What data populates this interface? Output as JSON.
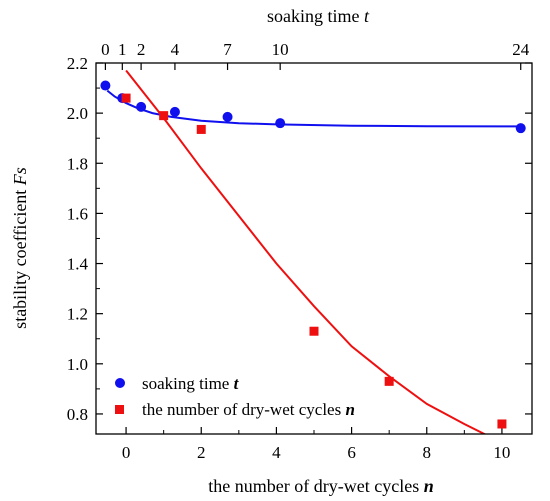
{
  "chart_data": {
    "type": "scatter",
    "title": "",
    "xlabel": {
      "text": "the number of dry-wet cycles ",
      "var": "n"
    },
    "x2label": {
      "text": "soaking time ",
      "var": "t"
    },
    "ylabel": {
      "text": "stability coefficient ",
      "var": "Fs"
    },
    "xlim": [
      -0.8,
      10.8
    ],
    "ylim": [
      0.72,
      2.2
    ],
    "x_ticks": [
      0,
      2,
      4,
      6,
      8,
      10
    ],
    "y_ticks": [
      0.8,
      1.0,
      1.2,
      1.4,
      1.6,
      1.8,
      2.0,
      2.2
    ],
    "y_tick_labels": [
      "0.8",
      "1.0",
      "1.2",
      "1.4",
      "1.6",
      "1.8",
      "2.0",
      "2.2"
    ],
    "top_ticks": [
      {
        "label": "0",
        "x": -0.55
      },
      {
        "label": "1",
        "x": -0.1
      },
      {
        "label": "2",
        "x": 0.4
      },
      {
        "label": "4",
        "x": 1.3
      },
      {
        "label": "7",
        "x": 2.7
      },
      {
        "label": "10",
        "x": 4.1
      },
      {
        "label": "24",
        "x": 10.5
      }
    ],
    "grid": false,
    "legend_position": "bottom-left",
    "series": [
      {
        "name": "soaking time ",
        "name_var": "t",
        "marker": "circle",
        "color": "#1010ee",
        "points": [
          {
            "x": -0.55,
            "y": 2.11
          },
          {
            "x": -0.1,
            "y": 2.06
          },
          {
            "x": 0.4,
            "y": 2.025
          },
          {
            "x": 1.3,
            "y": 2.005
          },
          {
            "x": 2.7,
            "y": 1.985
          },
          {
            "x": 4.1,
            "y": 1.96
          },
          {
            "x": 10.5,
            "y": 1.94
          }
        ],
        "fit": [
          {
            "x": -0.5,
            "y": 2.09
          },
          {
            "x": -0.3,
            "y": 2.066
          },
          {
            "x": 0.0,
            "y": 2.04
          },
          {
            "x": 0.3,
            "y": 2.02
          },
          {
            "x": 0.7,
            "y": 2.0
          },
          {
            "x": 1.2,
            "y": 1.985
          },
          {
            "x": 2.0,
            "y": 1.97
          },
          {
            "x": 3.0,
            "y": 1.96
          },
          {
            "x": 4.0,
            "y": 1.955
          },
          {
            "x": 6.0,
            "y": 1.95
          },
          {
            "x": 8.0,
            "y": 1.948
          },
          {
            "x": 10.0,
            "y": 1.947
          },
          {
            "x": 10.5,
            "y": 1.947
          }
        ]
      },
      {
        "name": "the number of dry-wet cycles ",
        "name_var": "n",
        "marker": "square",
        "color": "#ee1010",
        "points": [
          {
            "x": 0,
            "y": 2.06
          },
          {
            "x": 1,
            "y": 1.99
          },
          {
            "x": 2,
            "y": 1.935
          },
          {
            "x": 5,
            "y": 1.13
          },
          {
            "x": 7,
            "y": 0.93
          },
          {
            "x": 10,
            "y": 0.76
          }
        ],
        "fit": [
          {
            "x": 0.0,
            "y": 2.17
          },
          {
            "x": 1.0,
            "y": 1.98
          },
          {
            "x": 2.0,
            "y": 1.78
          },
          {
            "x": 3.0,
            "y": 1.59
          },
          {
            "x": 4.0,
            "y": 1.4
          },
          {
            "x": 5.0,
            "y": 1.23
          },
          {
            "x": 6.0,
            "y": 1.07
          },
          {
            "x": 7.0,
            "y": 0.95
          },
          {
            "x": 8.0,
            "y": 0.84
          },
          {
            "x": 9.0,
            "y": 0.76
          },
          {
            "x": 9.8,
            "y": 0.7
          }
        ]
      }
    ]
  }
}
